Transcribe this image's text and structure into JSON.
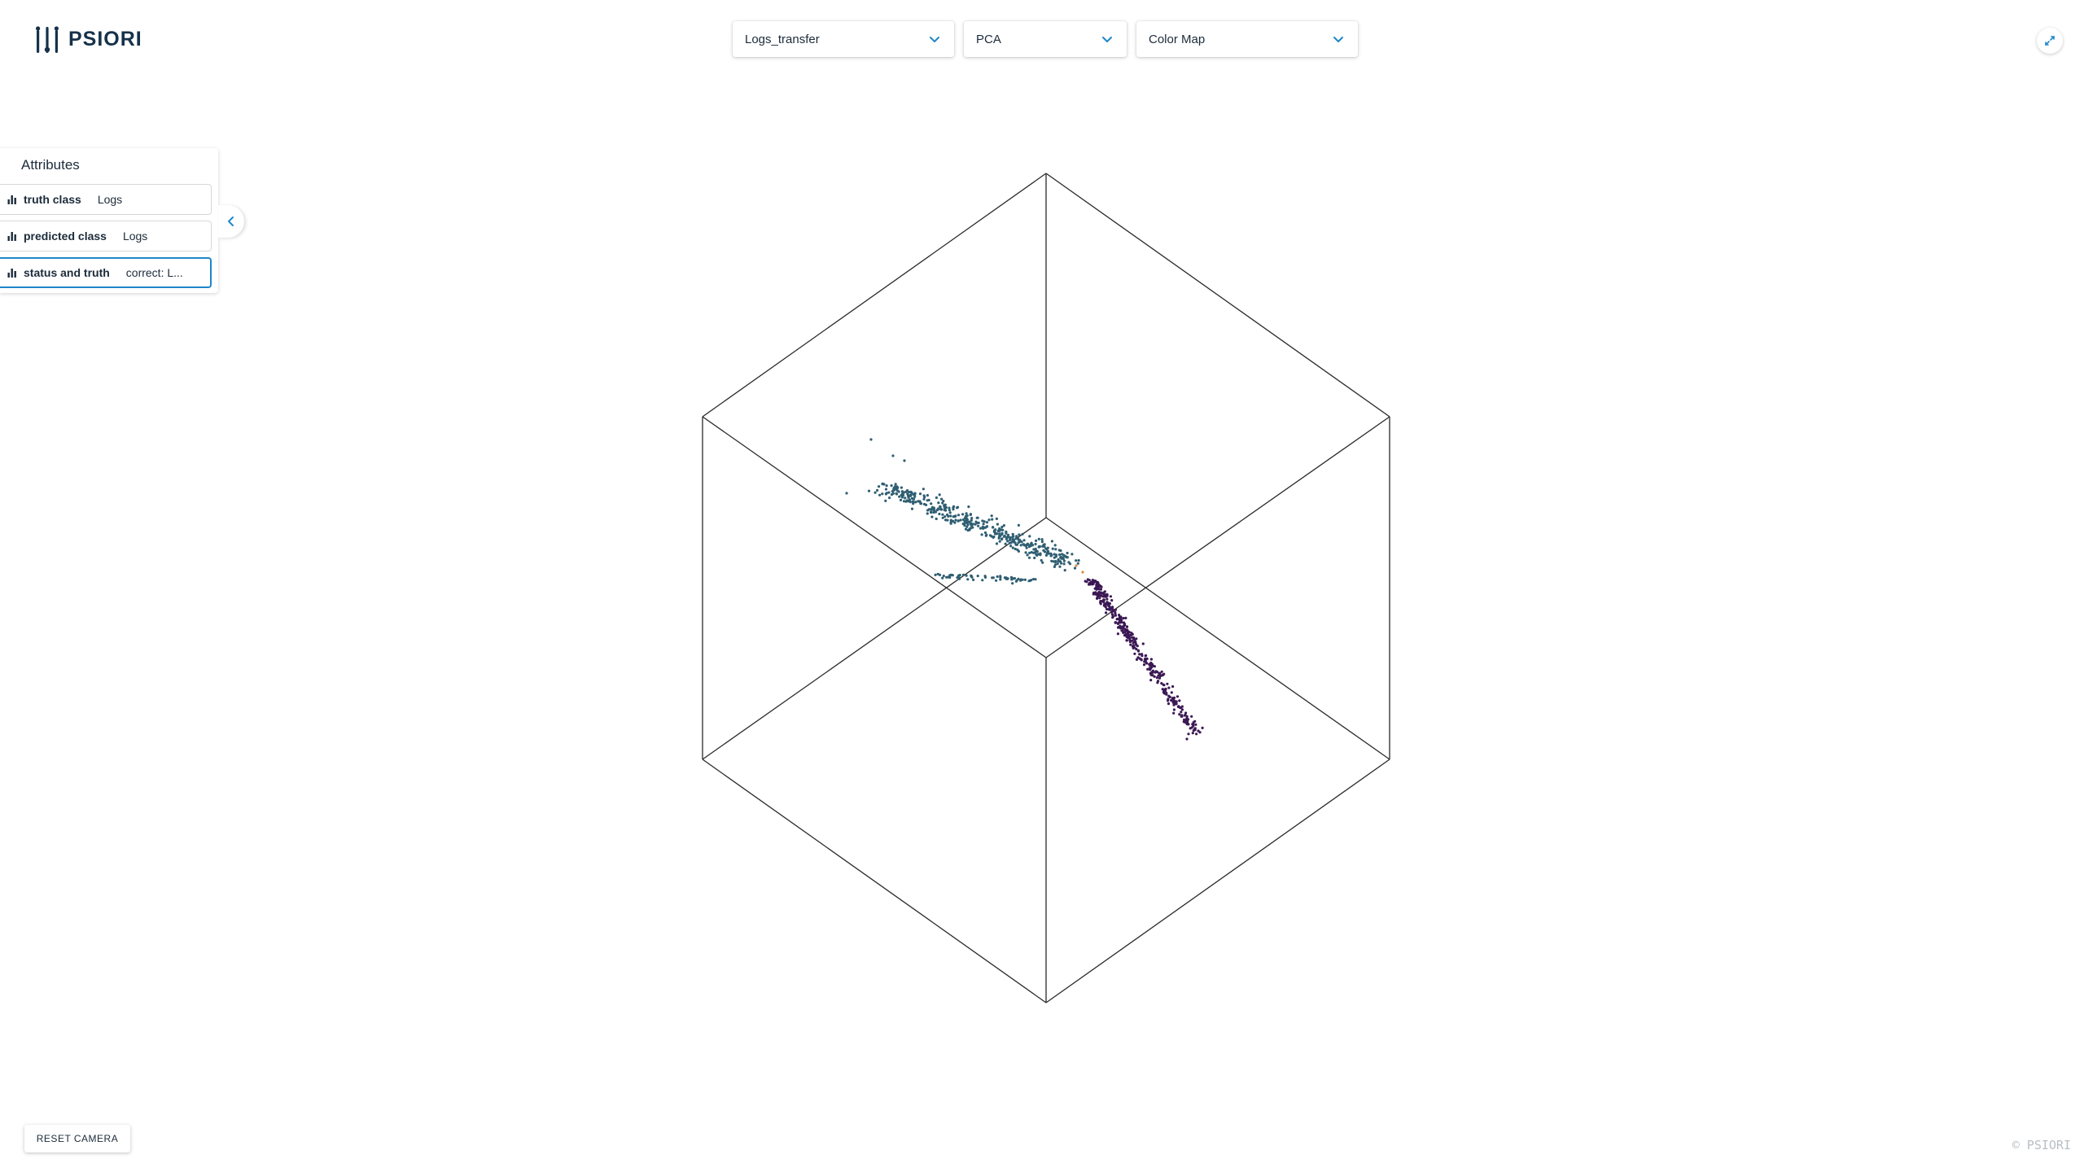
{
  "brand": {
    "name": "PSIORI",
    "copyright": "© PSIORI"
  },
  "toolbar": {
    "dataset": {
      "value": "Logs_transfer",
      "icon": "chevron-down-icon"
    },
    "method": {
      "value": "PCA",
      "icon": "chevron-down-icon"
    },
    "color": {
      "value": "Color Map",
      "icon": "chevron-down-icon"
    },
    "expand_icon": "expand-icon"
  },
  "attributes": {
    "title": "Attributes",
    "items": [
      {
        "name": "truth class",
        "value": "Logs",
        "icon": "bar-chart-icon",
        "selected": false
      },
      {
        "name": "predicted class",
        "value": "Logs",
        "icon": "bar-chart-icon",
        "selected": false
      },
      {
        "name": "status and truth",
        "value": "correct: L...",
        "icon": "bar-chart-icon",
        "selected": true
      }
    ],
    "collapse_icon": "chevron-left-icon"
  },
  "controls": {
    "reset_camera": "RESET CAMERA"
  },
  "colors": {
    "accent": "#1e86c8",
    "cluster_a": "#2f5e72",
    "cluster_b": "#3b1854",
    "outlier": "#d98a3a"
  }
}
